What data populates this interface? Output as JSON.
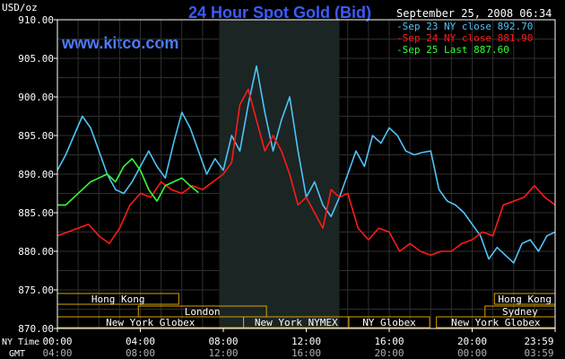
{
  "header": {
    "title": "24 Hour Spot Gold (Bid)",
    "units": "USD/oz",
    "site": "www.kitco.com",
    "timestamp": "September 25, 2008 06:34"
  },
  "colors": {
    "title": "#3b5bff",
    "site": "#4c7bff",
    "grid": "#2f2f2f",
    "axis": "#ffffff",
    "session_box": "#d9a400"
  },
  "legend": [
    {
      "label": "Sep 23 NY close 892.70",
      "color": "#4fc3f7"
    },
    {
      "label": "Sep 24 NY close 881.90",
      "color": "#ff1a1a"
    },
    {
      "label": "Sep 25 Last 887.60",
      "color": "#33ff33"
    }
  ],
  "sessions": [
    {
      "label": "Hong Kong",
      "row": 0,
      "start": 0.0,
      "end": 9.0
    },
    {
      "label": "London",
      "row": 1,
      "start": 6.0,
      "end": 15.5
    },
    {
      "label": "New York Globex",
      "row": 2,
      "start": 0.0,
      "end": 13.8
    },
    {
      "label": "New York NYMEX",
      "row": 2,
      "start": 13.8,
      "end": 21.6
    },
    {
      "label": "NY Globex",
      "row": 2,
      "start": 21.6,
      "end": 27.6
    },
    {
      "label": "Hong Kong",
      "row": 0,
      "start": 32.4,
      "end": 36.9
    },
    {
      "label": "Sydney",
      "row": 1,
      "start": 31.7,
      "end": 36.9
    },
    {
      "label": "New York Globex",
      "row": 2,
      "start": 28.1,
      "end": 36.9
    }
  ],
  "axis_rows": {
    "ny_label": "NY Time",
    "gmt_label": "GMT",
    "ny_ticks": [
      "00:00",
      "04:00",
      "08:00",
      "12:00",
      "16:00",
      "20:00",
      "23:59"
    ],
    "gmt_ticks": [
      "04:00",
      "08:00",
      "12:00",
      "16:00",
      "20:00",
      "00:00",
      "03:59"
    ]
  },
  "chart_data": {
    "type": "line",
    "title": "24 Hour Spot Gold (Bid)",
    "ylabel": "USD/oz",
    "xlabel": "NY Time",
    "xlim": [
      0,
      24
    ],
    "ylim": [
      870,
      910
    ],
    "y_ticks": [
      "870.00",
      "875.00",
      "880.00",
      "885.00",
      "890.00",
      "895.00",
      "900.00",
      "905.00",
      "910.00"
    ],
    "x_tick_hours": [
      0,
      4,
      8,
      12,
      16,
      20,
      24
    ],
    "shaded_range": [
      7.8,
      13.6
    ],
    "series": [
      {
        "name": "Sep 23 NY close 892.70",
        "color": "#4fc3f7",
        "x": [
          0.0,
          0.4,
          0.8,
          1.2,
          1.6,
          2.0,
          2.4,
          2.8,
          3.2,
          3.6,
          4.0,
          4.4,
          4.8,
          5.2,
          5.6,
          6.0,
          6.4,
          6.8,
          7.2,
          7.6,
          8.0,
          8.4,
          8.8,
          9.2,
          9.6,
          10.0,
          10.4,
          10.8,
          11.2,
          11.6,
          12.0,
          12.4,
          12.8,
          13.2,
          13.6,
          14.0,
          14.4,
          14.8,
          15.2,
          15.6,
          16.0,
          16.4,
          16.8,
          17.2,
          17.6,
          18.0,
          18.4,
          18.8,
          19.2,
          19.6,
          20.0,
          20.4,
          20.8,
          21.2,
          21.6,
          22.0,
          22.4,
          22.8,
          23.2,
          23.6,
          24.0
        ],
        "y": [
          890.5,
          892.5,
          895.0,
          897.5,
          896.0,
          893.0,
          890.0,
          888.0,
          887.5,
          889.0,
          891.0,
          893.0,
          891.0,
          889.5,
          894.0,
          898.0,
          896.0,
          893.0,
          890.0,
          892.0,
          890.5,
          895.0,
          893.0,
          899.0,
          904.0,
          898.0,
          893.0,
          897.0,
          900.0,
          893.0,
          887.0,
          889.0,
          886.0,
          884.5,
          887.0,
          890.0,
          893.0,
          891.0,
          895.0,
          894.0,
          896.0,
          895.0,
          893.0,
          892.5,
          892.8,
          893.0,
          888.0,
          886.5,
          886.0,
          885.0,
          883.5,
          882.0,
          879.0,
          880.5,
          879.5,
          878.5,
          881.0,
          881.5,
          880.0,
          882.0,
          882.5
        ]
      },
      {
        "name": "Sep 24 NY close 881.90",
        "color": "#ff1a1a",
        "x": [
          0.0,
          0.5,
          1.0,
          1.5,
          2.0,
          2.5,
          3.0,
          3.5,
          4.0,
          4.5,
          5.0,
          5.5,
          6.0,
          6.5,
          7.0,
          7.5,
          8.0,
          8.4,
          8.8,
          9.2,
          9.6,
          10.0,
          10.4,
          10.8,
          11.2,
          11.6,
          12.0,
          12.4,
          12.8,
          13.2,
          13.6,
          14.0,
          14.5,
          15.0,
          15.5,
          16.0,
          16.5,
          17.0,
          17.5,
          18.0,
          18.5,
          19.0,
          19.5,
          20.0,
          20.5,
          21.0,
          21.5,
          22.0,
          22.5,
          23.0,
          23.5,
          24.0
        ],
        "y": [
          882.0,
          882.5,
          883.0,
          883.5,
          882.0,
          881.0,
          883.0,
          886.0,
          887.5,
          887.0,
          889.0,
          888.0,
          887.5,
          888.5,
          888.0,
          889.0,
          890.0,
          891.5,
          899.0,
          901.0,
          897.0,
          893.0,
          895.0,
          893.0,
          890.0,
          886.0,
          887.0,
          885.0,
          883.0,
          888.0,
          887.0,
          887.5,
          883.0,
          881.5,
          883.0,
          882.5,
          880.0,
          881.0,
          880.0,
          879.5,
          880.0,
          880.0,
          881.0,
          881.5,
          882.5,
          882.0,
          886.0,
          886.5,
          887.0,
          888.5,
          887.0,
          886.0
        ]
      },
      {
        "name": "Sep 25 Last 887.60",
        "color": "#33ff33",
        "x": [
          0.0,
          0.4,
          0.8,
          1.2,
          1.6,
          2.0,
          2.4,
          2.8,
          3.2,
          3.6,
          4.0,
          4.4,
          4.8,
          5.2,
          5.6,
          6.0,
          6.4,
          6.8
        ],
        "y": [
          886.0,
          886.0,
          887.0,
          888.0,
          889.0,
          889.5,
          890.0,
          889.0,
          891.0,
          892.0,
          890.5,
          888.0,
          886.5,
          888.5,
          889.0,
          889.5,
          888.5,
          887.6
        ]
      }
    ]
  }
}
